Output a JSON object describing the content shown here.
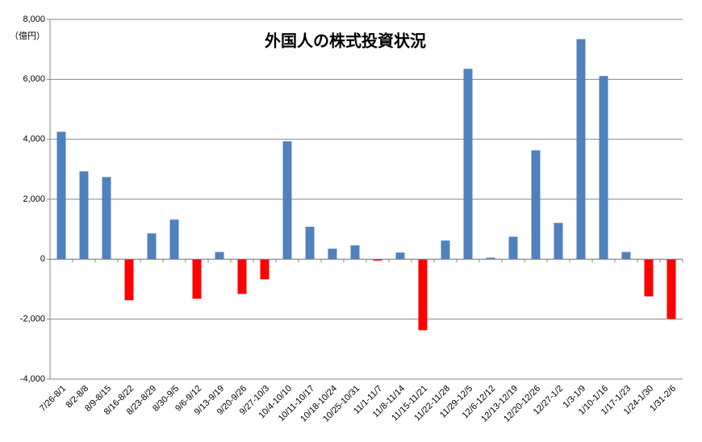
{
  "chart_data": {
    "type": "bar",
    "title": "外国人の株式投資状況",
    "y_unit_label": "（億円）",
    "categories": [
      "7/26-8/1",
      "8/2-8/8",
      "8/9-8/15",
      "8/16-8/22",
      "8/23-8/29",
      "8/30-9/5",
      "9/6-9/12",
      "9/13-9/19",
      "9/20-9/26",
      "9/27-10/3",
      "10/4-10/10",
      "10/11-10/17",
      "10/18-10/24",
      "10/25-10/31",
      "11/1-11/7",
      "11/8-11/14",
      "11/15-11/21",
      "11/22-11/28",
      "11/29-12/5",
      "12/6-12/12",
      "12/13-12/19",
      "12/20-12/26",
      "12/27-1/2",
      "1/3-1/9",
      "1/10-1/16",
      "1/17-1/23",
      "1/24-1/30",
      "1/31-2/6"
    ],
    "values": [
      4250,
      2930,
      2740,
      -1370,
      860,
      1320,
      -1320,
      240,
      -1160,
      -670,
      3930,
      1080,
      350,
      460,
      -50,
      220,
      -2370,
      620,
      6350,
      50,
      750,
      3630,
      1210,
      7340,
      6110,
      240,
      -1240,
      -1990
    ],
    "color": "#4f81bd",
    "negative_color": "#ff0000",
    "ylim": [
      -4000,
      8000
    ],
    "yticks": [
      {
        "value": -4000,
        "label": "-4,000"
      },
      {
        "value": -2000,
        "label": "-2,000"
      },
      0,
      {
        "value": 2000,
        "label": "2,000"
      },
      {
        "value": 4000,
        "label": "4,000"
      },
      {
        "value": 6000,
        "label": "6,000"
      },
      {
        "value": 8000,
        "label": "8,000"
      }
    ],
    "grid": true
  }
}
